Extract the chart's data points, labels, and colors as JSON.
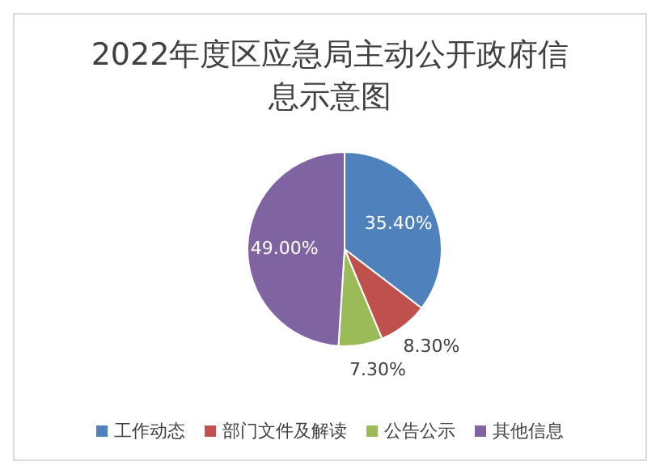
{
  "chart_data": {
    "type": "pie",
    "title": "2022年度区应急局主动公开政府信息示意图",
    "categories": [
      "工作动态",
      "部门文件及解读",
      "公告公示",
      "其他信息"
    ],
    "values": [
      35.4,
      8.3,
      7.3,
      49.0
    ],
    "value_labels": [
      "35.40%",
      "8.30%",
      "7.30%",
      "49.00%"
    ],
    "colors": [
      "#4f81bd",
      "#c0504d",
      "#9bbb59",
      "#8064a2"
    ],
    "legend": "bottom"
  }
}
